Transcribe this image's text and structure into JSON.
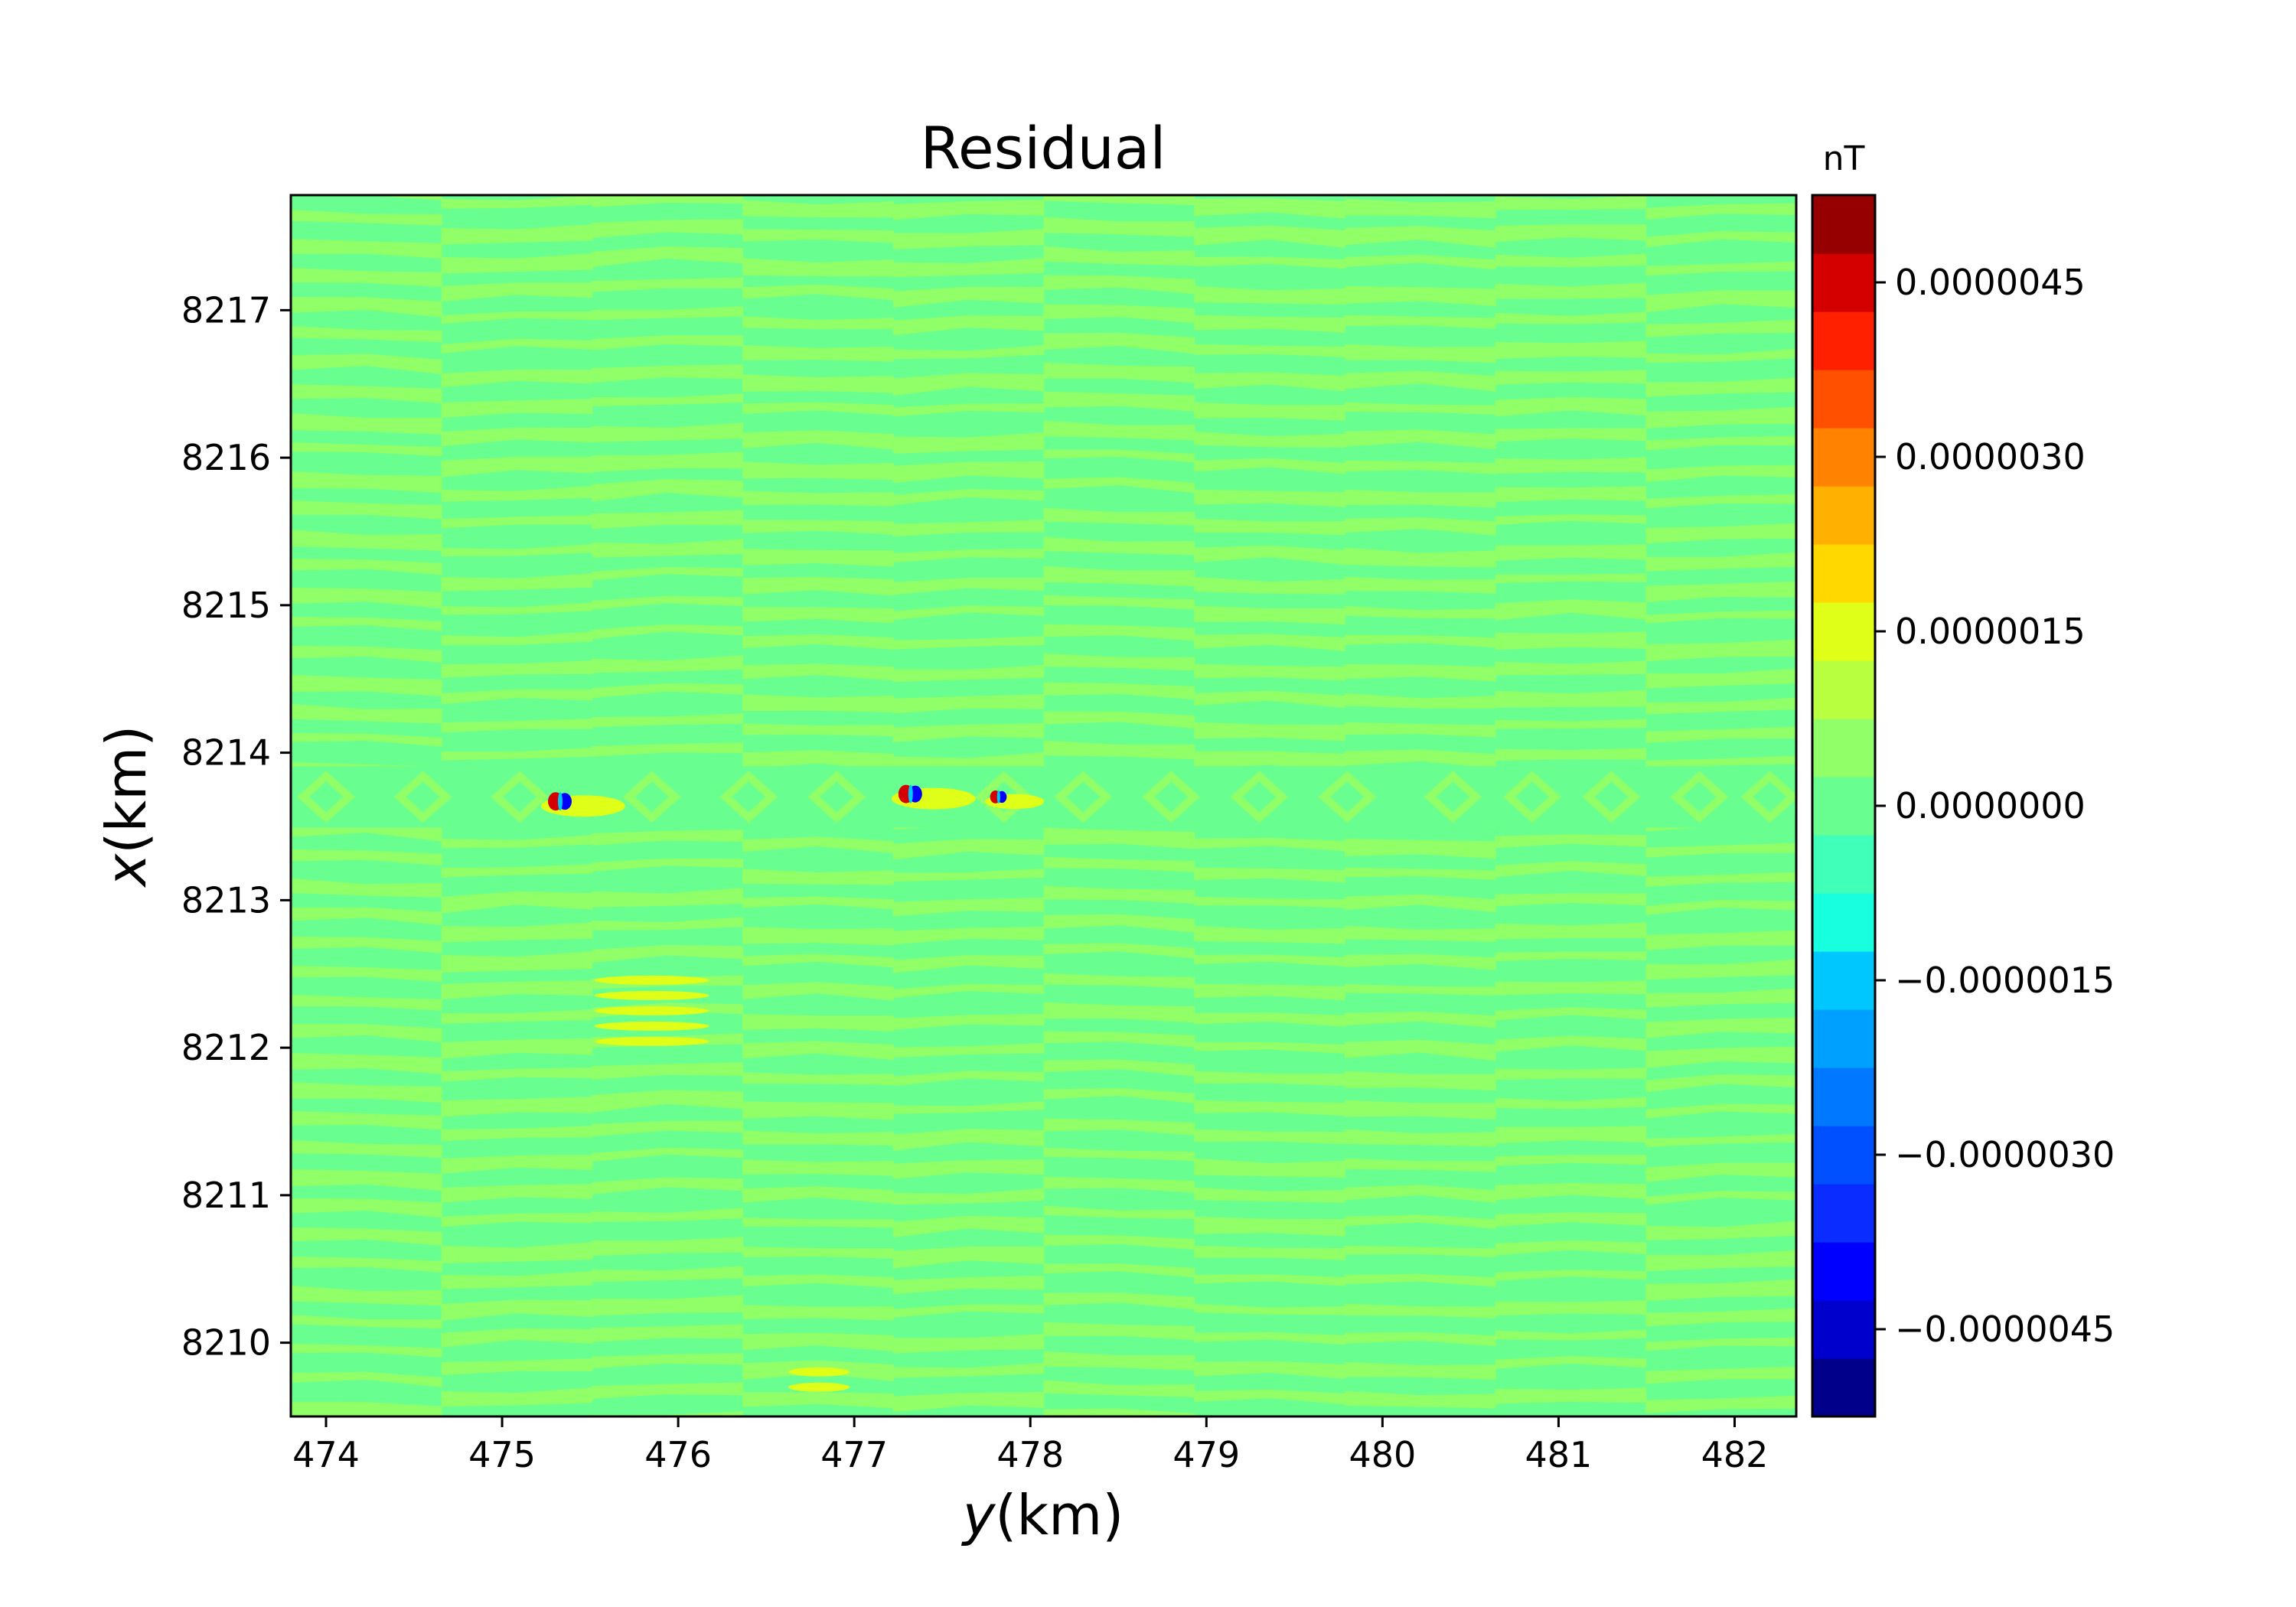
{
  "chart_data": {
    "type": "heatmap",
    "title": "Residual",
    "xlabel": {
      "italic": "y",
      "rest": "(km)"
    },
    "ylabel": {
      "italic": "x",
      "rest": "(km)"
    },
    "xlim": [
      473.8,
      482.35
    ],
    "ylim": [
      8209.5,
      8217.78
    ],
    "xticks": [
      474,
      475,
      476,
      477,
      478,
      479,
      480,
      481,
      482
    ],
    "xtick_labels": [
      "474",
      "475",
      "476",
      "477",
      "478",
      "479",
      "480",
      "481",
      "482"
    ],
    "yticks": [
      8210,
      8211,
      8212,
      8213,
      8214,
      8215,
      8216,
      8217
    ],
    "ytick_labels": [
      "8210",
      "8211",
      "8212",
      "8213",
      "8214",
      "8215",
      "8216",
      "8217"
    ],
    "colorbar": {
      "label": "nT",
      "vmin": -5.25e-06,
      "vmax": 5.25e-06,
      "levels": 20,
      "ticks": [
        -4.5e-06,
        -3e-06,
        -1.5e-06,
        0.0,
        1.5e-06,
        3e-06,
        4.5e-06
      ],
      "tick_labels": [
        "−0.0000045",
        "−0.0000030",
        "−0.0000015",
        "0.0000000",
        "0.0000015",
        "0.0000030",
        "0.0000045"
      ],
      "colors": [
        "#00008b",
        "#0000cd",
        "#0000ff",
        "#0a2cff",
        "#0050ff",
        "#0078ff",
        "#00a0ff",
        "#00c8ff",
        "#18ffe0",
        "#40ffb8",
        "#68ff90",
        "#90ff68",
        "#b8ff40",
        "#e0ff18",
        "#ffd800",
        "#ffb000",
        "#ff8200",
        "#ff5000",
        "#ff2000",
        "#d40000",
        "#960000"
      ]
    },
    "field": {
      "background": "#68ff90",
      "stripes": "#90ff68",
      "anomalies": [
        {
          "y": 475.33,
          "x": 8213.67,
          "kind": "dipole"
        },
        {
          "y": 477.32,
          "x": 8213.72,
          "kind": "dipole"
        },
        {
          "y": 477.82,
          "x": 8213.7,
          "kind": "dipole-small"
        },
        {
          "y": 475.85,
          "x": 8212.25,
          "kind": "stripes"
        },
        {
          "y": 476.8,
          "x": 8209.75,
          "kind": "stripes-small"
        }
      ],
      "diamond_row": {
        "x": 8213.7,
        "y": [
          474.0,
          474.55,
          475.1,
          475.85,
          476.4,
          476.9,
          477.85,
          478.3,
          478.8,
          479.3,
          479.8,
          480.4,
          480.85,
          481.3,
          481.8,
          482.2
        ]
      }
    }
  }
}
